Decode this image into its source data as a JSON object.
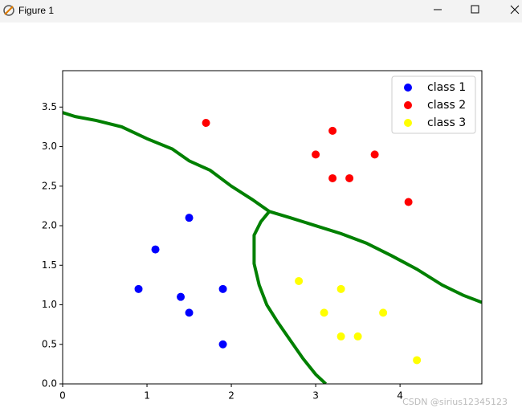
{
  "window": {
    "title": "Figure 1"
  },
  "chart_data": {
    "type": "scatter",
    "series": [
      {
        "name": "class 1",
        "color": "#0000ff",
        "x": [
          1.5,
          1.1,
          0.9,
          1.4,
          1.5,
          1.9,
          1.9
        ],
        "y": [
          2.1,
          1.7,
          1.2,
          1.1,
          0.9,
          1.2,
          0.5
        ]
      },
      {
        "name": "class 2",
        "color": "#ff0000",
        "x": [
          1.7,
          3.2,
          3.0,
          3.7,
          3.2,
          3.4,
          4.1
        ],
        "y": [
          3.3,
          3.2,
          2.9,
          2.9,
          2.6,
          2.6,
          2.3
        ]
      },
      {
        "name": "class 3",
        "color": "#ffff00",
        "x": [
          2.8,
          3.3,
          3.1,
          3.8,
          3.3,
          3.5,
          4.2
        ],
        "y": [
          1.3,
          1.2,
          0.9,
          0.9,
          0.6,
          0.6,
          0.3
        ]
      }
    ],
    "decision_boundaries": [
      {
        "color": "#008000",
        "x": [
          0,
          0.15,
          0.4,
          0.7,
          1.0,
          1.3,
          1.5,
          1.75,
          2.0,
          2.25,
          2.45,
          2.7,
          3.0,
          3.3,
          3.6,
          3.9,
          4.2,
          4.5,
          4.75,
          4.97
        ],
        "y": [
          3.43,
          3.38,
          3.33,
          3.25,
          3.1,
          2.97,
          2.82,
          2.7,
          2.5,
          2.33,
          2.18,
          2.1,
          2.0,
          1.9,
          1.78,
          1.62,
          1.45,
          1.25,
          1.12,
          1.03
        ]
      },
      {
        "color": "#008000",
        "x": [
          2.45,
          2.35,
          2.27,
          2.27,
          2.33,
          2.42,
          2.55,
          2.7,
          2.85,
          3.0,
          3.12
        ],
        "y": [
          2.18,
          2.05,
          1.88,
          1.52,
          1.25,
          1.0,
          0.78,
          0.55,
          0.32,
          0.12,
          0
        ]
      }
    ],
    "xlim": [
      0,
      4.97
    ],
    "ylim": [
      0,
      3.96
    ],
    "xticks": [
      0,
      1,
      2,
      3,
      4
    ],
    "yticks": [
      {
        "value": 0,
        "label": "0.0"
      },
      0.5,
      {
        "value": 1,
        "label": "1.0"
      },
      1.5,
      {
        "value": 2,
        "label": "2.0"
      },
      2.5,
      {
        "value": 3,
        "label": "3.0"
      },
      3.5
    ],
    "legend": "upper right",
    "watermark": "CSDN @sirius12345123"
  }
}
